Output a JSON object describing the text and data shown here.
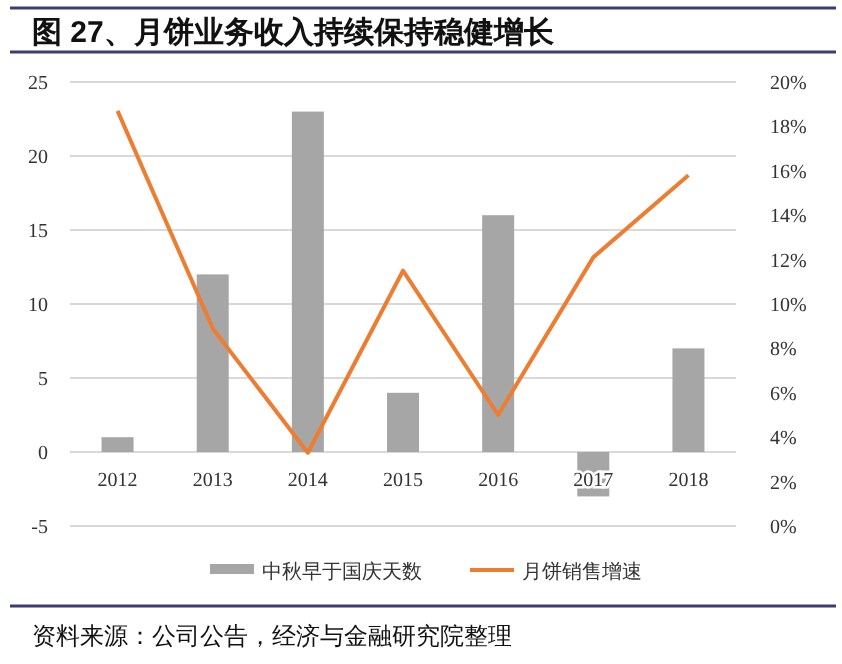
{
  "chart_data": {
    "type": "bar",
    "title": "图 27、月饼业务收入持续保持稳健增长",
    "categories": [
      "2012",
      "2013",
      "2014",
      "2015",
      "2016",
      "2017",
      "2018"
    ],
    "series": [
      {
        "name": "中秋早于国庆天数",
        "color": "#a6a6a6",
        "values": [
          1,
          12,
          23,
          4,
          16,
          -3,
          7
        ]
      },
      {
        "name": "月饼销售增速",
        "type": "line",
        "axis": "y2",
        "color": "#ed7d31",
        "values": [
          18.7,
          8.9,
          3.3,
          11.5,
          5.0,
          12.1,
          15.8
        ]
      }
    ],
    "ylim": [
      -5,
      25
    ],
    "yticks": [
      -5,
      0,
      5,
      10,
      15,
      20,
      25
    ],
    "y2lim": [
      0,
      20
    ],
    "y2ticks": [
      {
        "value": 0,
        "label": "0%"
      },
      {
        "value": 2,
        "label": "2%"
      },
      {
        "value": 4,
        "label": "4%"
      },
      {
        "value": 6,
        "label": "6%"
      },
      {
        "value": 8,
        "label": "8%"
      },
      {
        "value": 10,
        "label": "10%"
      },
      {
        "value": 12,
        "label": "12%"
      },
      {
        "value": 14,
        "label": "14%"
      },
      {
        "value": 16,
        "label": "16%"
      },
      {
        "value": 18,
        "label": "18%"
      },
      {
        "value": 20,
        "label": "20%"
      }
    ],
    "grid": "y",
    "legend": "bottom",
    "marker": "none",
    "line_style": "solid",
    "annotations": [
      "资料来源：公司公告，经济与金融研究院整理"
    ]
  }
}
